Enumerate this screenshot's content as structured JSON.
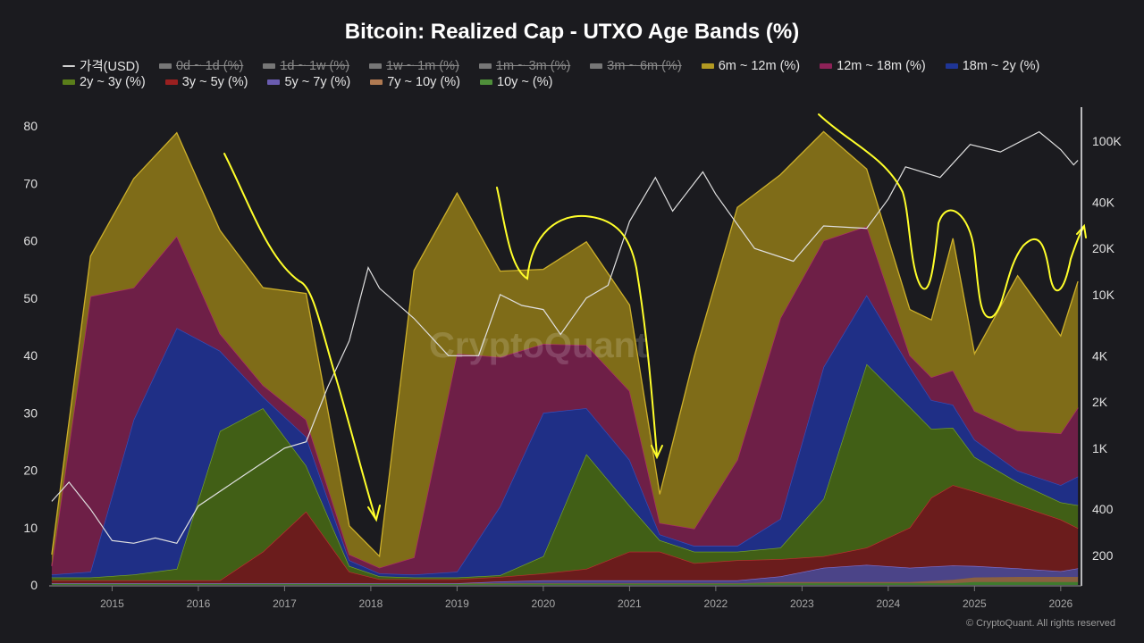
{
  "chart_data": {
    "type": "area",
    "stacked": true,
    "title": "Bitcoin: Realized Cap - UTXO Age Bands (%)",
    "legend": [
      {
        "label": "가격(USD)",
        "color": "#d0d0d0",
        "hidden": false,
        "kind": "line"
      },
      {
        "label": "0d ~ 1d (%)",
        "color": "#777777",
        "hidden": true
      },
      {
        "label": "1d ~ 1w (%)",
        "color": "#777777",
        "hidden": true
      },
      {
        "label": "1w ~ 1m (%)",
        "color": "#777777",
        "hidden": true
      },
      {
        "label": "1m ~ 3m (%)",
        "color": "#777777",
        "hidden": true
      },
      {
        "label": "3m ~ 6m (%)",
        "color": "#777777",
        "hidden": true
      },
      {
        "label": "6m ~ 12m (%)",
        "color": "#b39a22",
        "hidden": false
      },
      {
        "label": "12m ~ 18m (%)",
        "color": "#8e2258",
        "hidden": false
      },
      {
        "label": "18m ~ 2y (%)",
        "color": "#1f3596",
        "hidden": false
      },
      {
        "label": "2y ~ 3y (%)",
        "color": "#5a7e1a",
        "hidden": false
      },
      {
        "label": "3y ~ 5y (%)",
        "color": "#9a2020",
        "hidden": false
      },
      {
        "label": "5y ~ 7y (%)",
        "color": "#6a5cb0",
        "hidden": false
      },
      {
        "label": "7y ~ 10y (%)",
        "color": "#b07a52",
        "hidden": false
      },
      {
        "label": "10y ~ (%)",
        "color": "#4f8f3a",
        "hidden": false
      }
    ],
    "x": [
      2014.3,
      2014.75,
      2015.25,
      2015.75,
      2016.25,
      2016.75,
      2017.25,
      2017.75,
      2018.1,
      2018.5,
      2019.0,
      2019.5,
      2020.0,
      2020.5,
      2021.0,
      2021.35,
      2021.75,
      2022.25,
      2022.75,
      2023.25,
      2023.75,
      2024.25,
      2024.5,
      2024.75,
      2025.0,
      2025.5,
      2026.0,
      2026.2
    ],
    "series": [
      {
        "name": "10y ~ (%)",
        "color": "#3f7a2e",
        "values": [
          0.3,
          0.3,
          0.3,
          0.3,
          0.3,
          0.3,
          0.3,
          0.3,
          0.3,
          0.3,
          0.3,
          0.3,
          0.3,
          0.3,
          0.3,
          0.3,
          0.3,
          0.3,
          0.3,
          0.3,
          0.3,
          0.3,
          0.3,
          0.3,
          0.5,
          0.5,
          0.5,
          0.5
        ]
      },
      {
        "name": "7y ~ 10y (%)",
        "color": "#8a6040",
        "values": [
          0,
          0,
          0,
          0,
          0,
          0,
          0,
          0,
          0,
          0,
          0,
          0,
          0,
          0,
          0,
          0,
          0,
          0,
          0.2,
          0.2,
          0.2,
          0.2,
          0.4,
          0.6,
          0.8,
          0.9,
          0.9,
          0.9
        ]
      },
      {
        "name": "5y ~ 7y (%)",
        "color": "#4b4488",
        "values": [
          0,
          0,
          0,
          0,
          0,
          0,
          0,
          0,
          0,
          0,
          0,
          0.3,
          0.5,
          0.5,
          0.5,
          0.5,
          0.5,
          0.5,
          1,
          2.5,
          3,
          2.5,
          2.5,
          2.5,
          2,
          1.5,
          1,
          1.5
        ]
      },
      {
        "name": "3y ~ 5y (%)",
        "color": "#6b1c1c",
        "values": [
          0.5,
          0.5,
          0.5,
          0.5,
          0.5,
          5.5,
          12.5,
          2,
          0.7,
          0.7,
          0.7,
          0.8,
          1.2,
          2,
          5,
          5,
          3,
          3.5,
          3,
          2,
          3,
          7,
          12,
          14,
          13,
          11,
          9,
          7
        ]
      },
      {
        "name": "2y ~ 3y (%)",
        "color": "#415f16",
        "values": [
          0.5,
          0.5,
          1,
          2,
          26,
          25,
          8,
          1,
          0.5,
          0.3,
          0.3,
          0.3,
          3,
          20,
          8,
          2,
          2,
          1.5,
          2,
          10,
          32,
          21,
          12,
          10,
          6,
          4,
          3,
          4
        ]
      },
      {
        "name": "18m ~ 2y (%)",
        "color": "#1f2f86",
        "values": [
          0.5,
          1,
          27,
          42,
          14,
          2,
          5,
          1,
          0.5,
          0.5,
          1,
          12,
          25,
          8,
          8,
          1,
          1,
          1,
          5,
          23,
          12,
          7,
          5,
          4,
          3,
          2,
          3,
          5
        ]
      },
      {
        "name": "12m ~ 18m (%)",
        "color": "#6e1f47",
        "values": [
          1.5,
          48,
          23,
          16,
          3,
          2,
          3,
          1,
          1,
          3,
          38,
          26,
          12,
          11,
          12,
          2,
          3,
          15,
          35,
          22,
          12,
          2,
          4,
          6,
          5,
          7,
          9,
          12
        ]
      },
      {
        "name": "6m ~ 12m (%)",
        "color": "#7f6c18",
        "values": [
          2,
          7,
          19,
          18,
          18,
          17,
          22,
          5,
          2,
          50,
          28,
          15,
          13,
          18,
          15,
          5,
          30,
          44,
          25,
          19,
          10,
          8,
          10,
          23,
          10,
          27,
          17,
          22
        ]
      }
    ],
    "price_series": {
      "name": "가격(USD)",
      "color": "#e0e0e0",
      "x": [
        2014.3,
        2014.5,
        2014.75,
        2015.0,
        2015.25,
        2015.5,
        2015.75,
        2016.0,
        2016.5,
        2017.0,
        2017.25,
        2017.5,
        2017.75,
        2017.97,
        2018.1,
        2018.5,
        2018.9,
        2019.25,
        2019.5,
        2019.75,
        2020.0,
        2020.2,
        2020.5,
        2020.75,
        2021.0,
        2021.3,
        2021.5,
        2021.85,
        2022.0,
        2022.45,
        2022.9,
        2023.25,
        2023.75,
        2024.0,
        2024.2,
        2024.6,
        2024.95,
        2025.3,
        2025.75,
        2026.0,
        2026.15,
        2026.2
      ],
      "values": [
        450,
        600,
        400,
        250,
        240,
        260,
        240,
        420,
        650,
        1000,
        1100,
        2500,
        5000,
        15000,
        11000,
        7000,
        4000,
        4000,
        10000,
        8500,
        8000,
        5500,
        9500,
        11500,
        30000,
        58000,
        35000,
        63000,
        45000,
        20000,
        16500,
        28000,
        27000,
        42000,
        68000,
        58000,
        95000,
        85000,
        115000,
        88000,
        70000,
        75000
      ]
    },
    "xlim": [
      2014.27,
      2026.24
    ],
    "ylim": [
      0,
      80
    ],
    "y2_scale": "log",
    "y2lim": [
      130,
      180000
    ],
    "x_ticks": [
      "2015",
      "2016",
      "2017",
      "2018",
      "2019",
      "2020",
      "2021",
      "2022",
      "2023",
      "2024",
      "2025",
      "2026"
    ],
    "y_ticks": [
      "0",
      "10",
      "20",
      "30",
      "40",
      "50",
      "60",
      "70",
      "80"
    ],
    "y2_ticks": [
      "100K",
      "40K",
      "20K",
      "10K",
      "4K",
      "2K",
      "1K",
      "400",
      "200"
    ],
    "y2_tick_values": [
      100000,
      40000,
      20000,
      10000,
      4000,
      2000,
      1000,
      400,
      200
    ],
    "grid": false,
    "legend_position": "top",
    "annotation_color": "#ffff2a",
    "watermark": "CryptoQuant"
  },
  "footer": {
    "copyright": "© CryptoQuant. All rights reserved"
  }
}
